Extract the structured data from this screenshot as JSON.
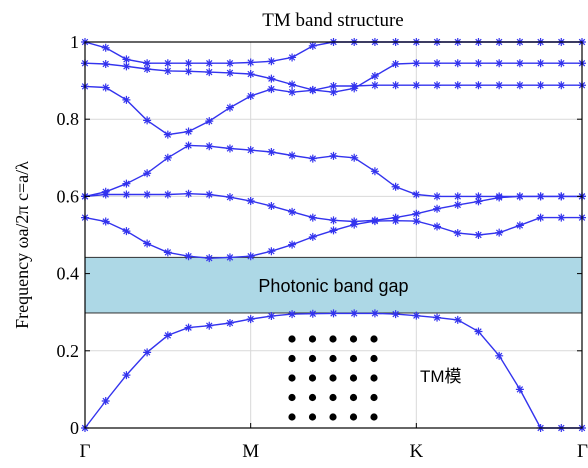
{
  "chart_data": {
    "type": "line",
    "title": "TM band structure",
    "ylabel": "Frequency ωa/2π c=a/λ",
    "xlabel": "",
    "ylim": [
      0,
      1
    ],
    "yticks": [
      "0",
      "0.2",
      "0.4",
      "0.6",
      "0.8",
      "1"
    ],
    "ytick_values": [
      0,
      0.2,
      0.4,
      0.6,
      0.8,
      1.0
    ],
    "x_ticks": [
      {
        "label": "Γ",
        "pos": 0
      },
      {
        "label": "M",
        "pos": 8
      },
      {
        "label": "K",
        "pos": 16
      },
      {
        "label": "Γ",
        "pos": 24
      }
    ],
    "x": [
      0,
      1,
      2,
      3,
      4,
      5,
      6,
      7,
      8,
      9,
      10,
      11,
      12,
      13,
      14,
      15,
      16,
      17,
      18,
      19,
      20,
      21,
      22,
      23,
      24
    ],
    "grid": true,
    "band_gap": {
      "label": "Photonic band gap",
      "y0": 0.298,
      "y1": 0.442,
      "color": "#add8e6"
    },
    "inset_label": "TM模",
    "inset_lattice": {
      "rows": 5,
      "cols": 5
    },
    "series_style": {
      "color": "#3333ee",
      "marker": "asterisk"
    },
    "series": [
      {
        "values": [
          0.0,
          0.07,
          0.137,
          0.196,
          0.24,
          0.26,
          0.265,
          0.272,
          0.282,
          0.29,
          0.295,
          0.296,
          0.297,
          0.297,
          0.297,
          0.295,
          0.291,
          0.286,
          0.28,
          0.25,
          0.187,
          0.1,
          0.0,
          0.0,
          0.0
        ]
      },
      {
        "values": [
          0.545,
          0.535,
          0.51,
          0.478,
          0.455,
          0.445,
          0.44,
          0.442,
          0.445,
          0.458,
          0.475,
          0.495,
          0.512,
          0.527,
          0.536,
          0.537,
          0.536,
          0.522,
          0.505,
          0.5,
          0.506,
          0.525,
          0.545,
          0.545,
          0.545
        ]
      },
      {
        "values": [
          0.6,
          0.605,
          0.605,
          0.605,
          0.605,
          0.607,
          0.605,
          0.598,
          0.588,
          0.575,
          0.56,
          0.545,
          0.538,
          0.535,
          0.538,
          0.545,
          0.555,
          0.568,
          0.578,
          0.587,
          0.597,
          0.6,
          0.6,
          0.6,
          0.6
        ]
      },
      {
        "values": [
          0.6,
          0.612,
          0.633,
          0.66,
          0.7,
          0.732,
          0.73,
          0.724,
          0.72,
          0.715,
          0.706,
          0.698,
          0.705,
          0.7,
          0.665,
          0.625,
          0.605,
          0.6,
          0.6,
          0.6,
          0.6,
          0.6,
          0.6,
          0.6,
          0.6
        ]
      },
      {
        "values": [
          0.885,
          0.882,
          0.85,
          0.797,
          0.76,
          0.768,
          0.795,
          0.83,
          0.86,
          0.878,
          0.87,
          0.875,
          0.886,
          0.886,
          0.888,
          0.888,
          0.888,
          0.888,
          0.888,
          0.888,
          0.888,
          0.888,
          0.888,
          0.888,
          0.888
        ]
      },
      {
        "values": [
          0.945,
          0.943,
          0.937,
          0.93,
          0.925,
          0.924,
          0.922,
          0.92,
          0.917,
          0.905,
          0.89,
          0.876,
          0.87,
          0.88,
          0.912,
          0.943,
          0.945,
          0.945,
          0.945,
          0.945,
          0.945,
          0.945,
          0.945,
          0.945,
          0.945
        ]
      },
      {
        "values": [
          1.0,
          0.985,
          0.955,
          0.945,
          0.945,
          0.945,
          0.945,
          0.945,
          0.947,
          0.95,
          0.96,
          0.99,
          1.0,
          1.0,
          1.0,
          1.0,
          1.0,
          1.0,
          1.0,
          1.0,
          1.0,
          1.0,
          1.0,
          1.0,
          1.0
        ]
      }
    ]
  }
}
